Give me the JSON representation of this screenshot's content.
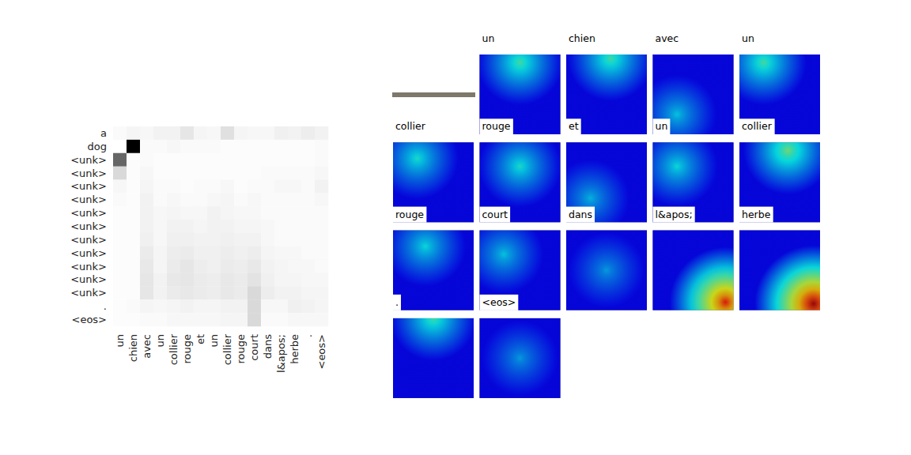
{
  "chart_data": [
    {
      "type": "heatmap",
      "x_labels": [
        "un",
        "chien",
        "avec",
        "un",
        "collier",
        "rouge",
        "et",
        "un",
        "collier",
        "rouge",
        "court",
        "dans",
        "l&apos;",
        "herbe",
        ".",
        "<eos>"
      ],
      "y_labels": [
        "a",
        "dog",
        "<unk>",
        "<unk>",
        "<unk>",
        "<unk>",
        "<unk>",
        "<unk>",
        "<unk>",
        "<unk>",
        "<unk>",
        "<unk>",
        "<unk>",
        ".",
        "<eos>"
      ],
      "zlim": [
        0,
        1
      ],
      "values": [
        [
          0.02,
          0.04,
          0.03,
          0.05,
          0.05,
          0.1,
          0.04,
          0.03,
          0.12,
          0.04,
          0.03,
          0.03,
          0.06,
          0.05,
          0.07,
          0.05
        ],
        [
          0.0,
          1.0,
          0.02,
          0.02,
          0.03,
          0.02,
          0.02,
          0.02,
          0.01,
          0.01,
          0.01,
          0.01,
          0.01,
          0.01,
          0.01,
          0.02
        ],
        [
          0.6,
          0.01,
          0.02,
          0.01,
          0.01,
          0.01,
          0.01,
          0.01,
          0.01,
          0.01,
          0.01,
          0.01,
          0.01,
          0.01,
          0.01,
          0.02
        ],
        [
          0.15,
          0.01,
          0.03,
          0.01,
          0.01,
          0.01,
          0.01,
          0.01,
          0.01,
          0.01,
          0.01,
          0.02,
          0.02,
          0.02,
          0.02,
          0.03
        ],
        [
          0.03,
          0.01,
          0.04,
          0.02,
          0.02,
          0.01,
          0.02,
          0.02,
          0.03,
          0.01,
          0.02,
          0.02,
          0.03,
          0.03,
          0.02,
          0.05
        ],
        [
          0.02,
          0.01,
          0.05,
          0.02,
          0.03,
          0.02,
          0.02,
          0.03,
          0.04,
          0.02,
          0.03,
          0.02,
          0.02,
          0.02,
          0.02,
          0.03
        ],
        [
          0.01,
          0.01,
          0.05,
          0.03,
          0.04,
          0.03,
          0.03,
          0.05,
          0.04,
          0.03,
          0.03,
          0.02,
          0.02,
          0.02,
          0.02,
          0.02
        ],
        [
          0.01,
          0.01,
          0.05,
          0.03,
          0.05,
          0.05,
          0.04,
          0.05,
          0.05,
          0.04,
          0.04,
          0.03,
          0.02,
          0.02,
          0.02,
          0.02
        ],
        [
          0.01,
          0.01,
          0.06,
          0.03,
          0.06,
          0.06,
          0.05,
          0.05,
          0.06,
          0.05,
          0.05,
          0.03,
          0.02,
          0.02,
          0.02,
          0.02
        ],
        [
          0.01,
          0.01,
          0.08,
          0.04,
          0.07,
          0.08,
          0.06,
          0.06,
          0.07,
          0.06,
          0.07,
          0.04,
          0.03,
          0.03,
          0.02,
          0.02
        ],
        [
          0.01,
          0.01,
          0.09,
          0.04,
          0.08,
          0.1,
          0.07,
          0.06,
          0.08,
          0.07,
          0.09,
          0.05,
          0.04,
          0.03,
          0.03,
          0.02
        ],
        [
          0.01,
          0.01,
          0.1,
          0.05,
          0.09,
          0.1,
          0.08,
          0.07,
          0.09,
          0.08,
          0.11,
          0.06,
          0.04,
          0.04,
          0.03,
          0.03
        ],
        [
          0.01,
          0.01,
          0.1,
          0.05,
          0.08,
          0.09,
          0.08,
          0.07,
          0.09,
          0.08,
          0.15,
          0.07,
          0.05,
          0.05,
          0.04,
          0.04
        ],
        [
          0.01,
          0.02,
          0.04,
          0.03,
          0.04,
          0.05,
          0.04,
          0.04,
          0.05,
          0.05,
          0.15,
          0.03,
          0.03,
          0.06,
          0.05,
          0.04
        ],
        [
          0.01,
          0.01,
          0.02,
          0.02,
          0.03,
          0.03,
          0.03,
          0.03,
          0.04,
          0.04,
          0.15,
          0.02,
          0.02,
          0.03,
          0.03,
          0.03
        ]
      ]
    },
    {
      "type": "attention_map_grid",
      "words": [
        "un",
        "chien",
        "avec",
        "un",
        "collier",
        "rouge",
        "et",
        "un",
        "collier",
        "rouge",
        "court",
        "dans",
        "l&apos;",
        "herbe",
        ".",
        "<eos>"
      ],
      "zlim": [
        0,
        1
      ],
      "floor": 0.12,
      "peaks": [
        [
          0.5,
          0.1
        ],
        [
          0.55,
          0.05
        ],
        [
          0.3,
          0.75
        ],
        [
          0.3,
          0.1
        ],
        [
          0.3,
          0.2
        ],
        [
          0.5,
          0.3
        ],
        [
          0.3,
          0.7
        ],
        [
          0.3,
          0.3
        ],
        [
          0.6,
          0.1
        ],
        [
          0.4,
          0.2
        ],
        [
          0.3,
          0.3
        ],
        [
          0.5,
          0.5
        ],
        [
          0.9,
          0.9
        ],
        [
          0.92,
          0.92
        ],
        [
          0.5,
          0.0
        ],
        [
          0.5,
          0.5
        ]
      ],
      "values": [
        0.45,
        0.45,
        0.35,
        0.45,
        0.4,
        0.4,
        0.33,
        0.38,
        0.5,
        0.38,
        0.35,
        0.3,
        0.85,
        0.95,
        0.45,
        0.3
      ]
    }
  ]
}
